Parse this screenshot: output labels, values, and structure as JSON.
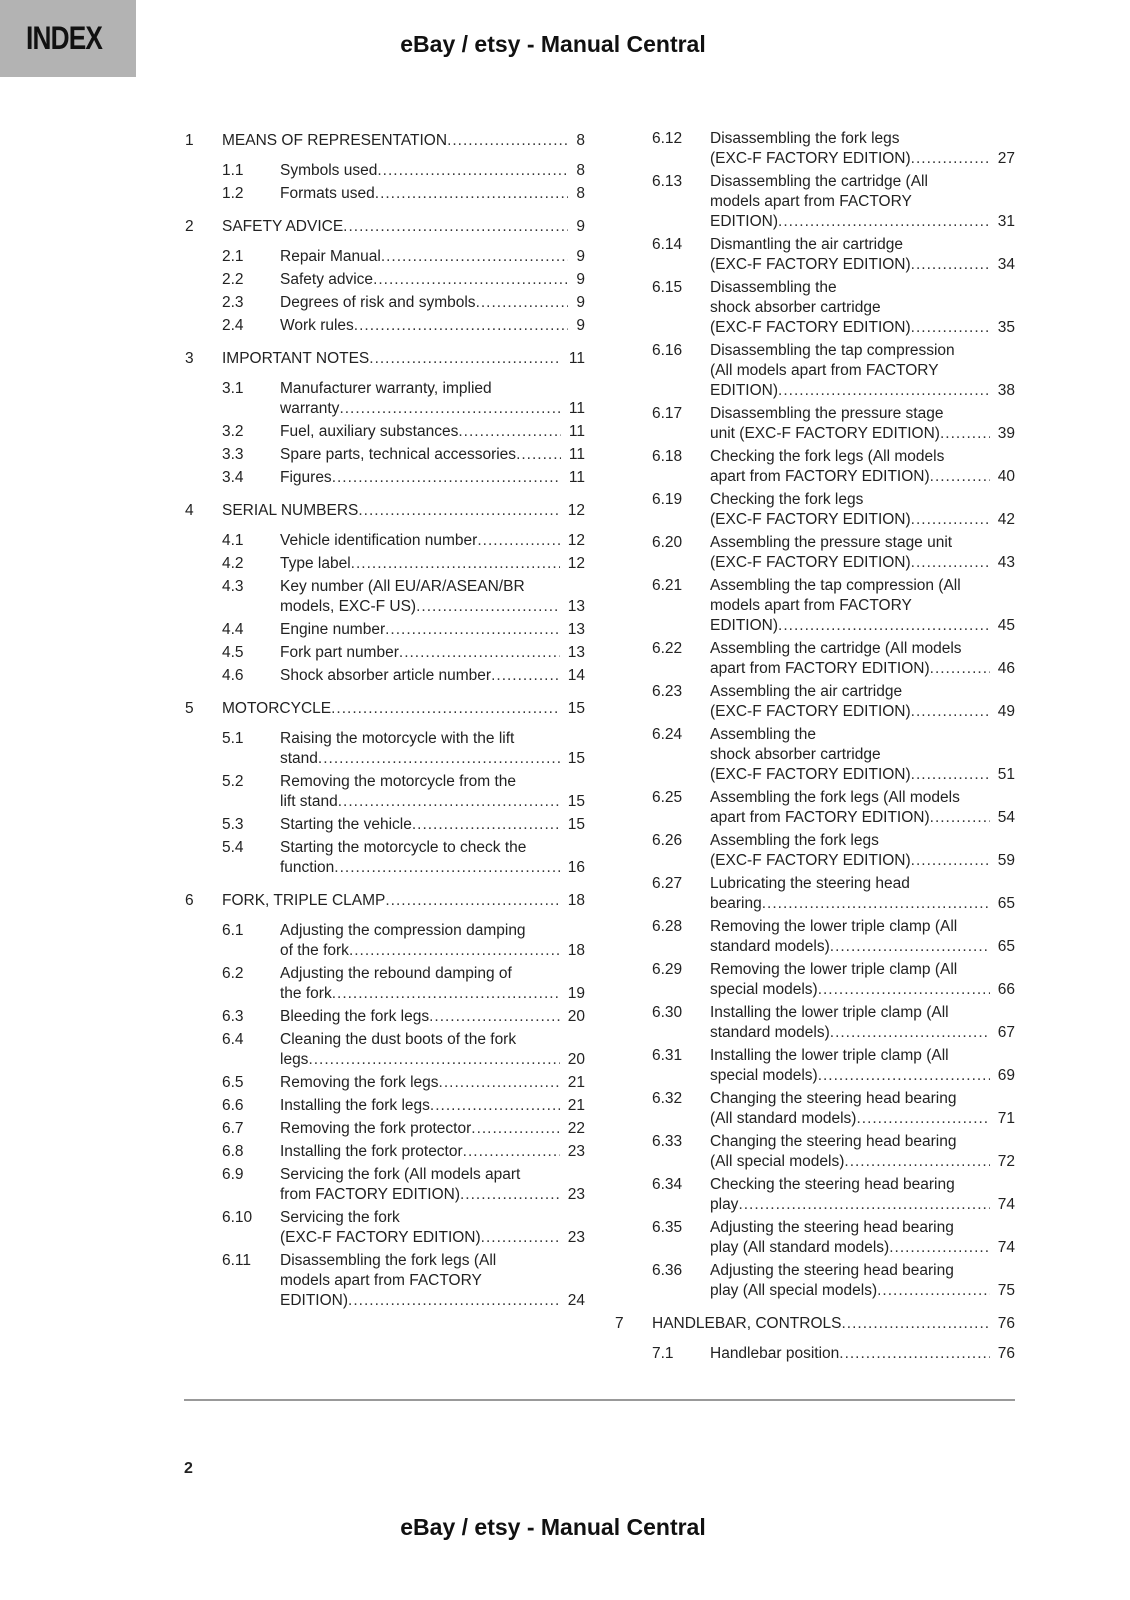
{
  "header": {
    "index_label": "INDEX",
    "title": "eBay / etsy - Manual Central"
  },
  "footer": {
    "page_number": "2",
    "title": "eBay / etsy - Manual Central"
  },
  "toc": {
    "left": [
      {
        "num": "1",
        "level": "chapter",
        "lines": [
          "MEANS OF REPRESENTATION"
        ],
        "page": "8"
      },
      {
        "num": "1.1",
        "level": "sub",
        "lines": [
          "Symbols used"
        ],
        "page": "8"
      },
      {
        "num": "1.2",
        "level": "sub",
        "lines": [
          "Formats used"
        ],
        "page": "8"
      },
      {
        "num": "2",
        "level": "chapter",
        "lines": [
          "SAFETY ADVICE"
        ],
        "page": "9"
      },
      {
        "num": "2.1",
        "level": "sub",
        "lines": [
          "Repair Manual"
        ],
        "page": "9"
      },
      {
        "num": "2.2",
        "level": "sub",
        "lines": [
          "Safety advice"
        ],
        "page": "9"
      },
      {
        "num": "2.3",
        "level": "sub",
        "lines": [
          "Degrees of risk and symbols"
        ],
        "page": "9"
      },
      {
        "num": "2.4",
        "level": "sub",
        "lines": [
          "Work rules"
        ],
        "page": "9"
      },
      {
        "num": "3",
        "level": "chapter",
        "lines": [
          "IMPORTANT NOTES"
        ],
        "page": "11"
      },
      {
        "num": "3.1",
        "level": "sub",
        "lines": [
          "Manufacturer warranty, implied",
          "warranty"
        ],
        "page": "11"
      },
      {
        "num": "3.2",
        "level": "sub",
        "lines": [
          "Fuel, auxiliary substances"
        ],
        "page": "11"
      },
      {
        "num": "3.3",
        "level": "sub",
        "lines": [
          "Spare parts, technical accessories"
        ],
        "page": "11"
      },
      {
        "num": "3.4",
        "level": "sub",
        "lines": [
          "Figures"
        ],
        "page": "11"
      },
      {
        "num": "4",
        "level": "chapter",
        "lines": [
          "SERIAL NUMBERS"
        ],
        "page": "12"
      },
      {
        "num": "4.1",
        "level": "sub",
        "lines": [
          "Vehicle identification number"
        ],
        "page": "12"
      },
      {
        "num": "4.2",
        "level": "sub",
        "lines": [
          "Type label"
        ],
        "page": "12"
      },
      {
        "num": "4.3",
        "level": "sub",
        "lines": [
          "Key number (All EU/AR/ASEAN/BR",
          "models, EXC-F US)"
        ],
        "page": "13"
      },
      {
        "num": "4.4",
        "level": "sub",
        "lines": [
          "Engine number"
        ],
        "page": "13"
      },
      {
        "num": "4.5",
        "level": "sub",
        "lines": [
          "Fork part number"
        ],
        "page": "13"
      },
      {
        "num": "4.6",
        "level": "sub",
        "lines": [
          "Shock absorber article number"
        ],
        "page": "14"
      },
      {
        "num": "5",
        "level": "chapter",
        "lines": [
          "MOTORCYCLE"
        ],
        "page": "15"
      },
      {
        "num": "5.1",
        "level": "sub",
        "lines": [
          "Raising the motorcycle with the lift",
          "stand"
        ],
        "page": "15"
      },
      {
        "num": "5.2",
        "level": "sub",
        "lines": [
          "Removing the motorcycle from the",
          "lift stand"
        ],
        "page": "15"
      },
      {
        "num": "5.3",
        "level": "sub",
        "lines": [
          "Starting the vehicle"
        ],
        "page": "15"
      },
      {
        "num": "5.4",
        "level": "sub",
        "lines": [
          "Starting the motorcycle to check the",
          "function"
        ],
        "page": "16"
      },
      {
        "num": "6",
        "level": "chapter",
        "lines": [
          "FORK, TRIPLE CLAMP"
        ],
        "page": "18"
      },
      {
        "num": "6.1",
        "level": "sub",
        "lines": [
          "Adjusting the compression damping",
          "of the fork"
        ],
        "page": "18"
      },
      {
        "num": "6.2",
        "level": "sub",
        "lines": [
          "Adjusting the rebound damping of",
          "the fork"
        ],
        "page": "19"
      },
      {
        "num": "6.3",
        "level": "sub",
        "lines": [
          "Bleeding the fork legs"
        ],
        "page": "20"
      },
      {
        "num": "6.4",
        "level": "sub",
        "lines": [
          "Cleaning the dust boots of the fork",
          "legs"
        ],
        "page": "20"
      },
      {
        "num": "6.5",
        "level": "sub",
        "lines": [
          "Removing the fork legs"
        ],
        "page": "21"
      },
      {
        "num": "6.6",
        "level": "sub",
        "lines": [
          "Installing the fork legs"
        ],
        "page": "21"
      },
      {
        "num": "6.7",
        "level": "sub",
        "lines": [
          "Removing the fork protector"
        ],
        "page": "22"
      },
      {
        "num": "6.8",
        "level": "sub",
        "lines": [
          "Installing the fork protector"
        ],
        "page": "23"
      },
      {
        "num": "6.9",
        "level": "sub",
        "lines": [
          "Servicing the fork (All models apart",
          "from FACTORY EDITION)"
        ],
        "page": "23"
      },
      {
        "num": "6.10",
        "level": "sub",
        "lines": [
          "Servicing the fork",
          "(EXC-F FACTORY EDITION)"
        ],
        "page": "23"
      },
      {
        "num": "6.11",
        "level": "sub",
        "lines": [
          "Disassembling the fork legs (All",
          "models apart from FACTORY",
          "EDITION)"
        ],
        "page": "24"
      }
    ],
    "right": [
      {
        "num": "6.12",
        "level": "sub",
        "lines": [
          "Disassembling the fork legs",
          "(EXC-F FACTORY EDITION)"
        ],
        "page": "27"
      },
      {
        "num": "6.13",
        "level": "sub",
        "lines": [
          "Disassembling the cartridge (All",
          "models apart from FACTORY",
          "EDITION)"
        ],
        "page": "31"
      },
      {
        "num": "6.14",
        "level": "sub",
        "lines": [
          "Dismantling the air cartridge",
          "(EXC-F FACTORY EDITION)"
        ],
        "page": "34"
      },
      {
        "num": "6.15",
        "level": "sub",
        "lines": [
          "Disassembling the",
          "shock absorber cartridge",
          "(EXC-F FACTORY EDITION)"
        ],
        "page": "35"
      },
      {
        "num": "6.16",
        "level": "sub",
        "lines": [
          "Disassembling the tap compression",
          "(All models apart from FACTORY",
          "EDITION)"
        ],
        "page": "38"
      },
      {
        "num": "6.17",
        "level": "sub",
        "lines": [
          "Disassembling the pressure stage",
          "unit (EXC-F FACTORY EDITION)"
        ],
        "page": "39"
      },
      {
        "num": "6.18",
        "level": "sub",
        "lines": [
          "Checking the fork legs (All models",
          "apart from FACTORY EDITION)"
        ],
        "page": "40"
      },
      {
        "num": "6.19",
        "level": "sub",
        "lines": [
          "Checking the fork legs",
          "(EXC-F FACTORY EDITION)"
        ],
        "page": "42"
      },
      {
        "num": "6.20",
        "level": "sub",
        "lines": [
          "Assembling the pressure stage unit",
          "(EXC-F FACTORY EDITION)"
        ],
        "page": "43"
      },
      {
        "num": "6.21",
        "level": "sub",
        "lines": [
          "Assembling the tap compression (All",
          "models apart from FACTORY",
          "EDITION)"
        ],
        "page": "45"
      },
      {
        "num": "6.22",
        "level": "sub",
        "lines": [
          "Assembling the cartridge (All models",
          "apart from FACTORY EDITION)"
        ],
        "page": "46"
      },
      {
        "num": "6.23",
        "level": "sub",
        "lines": [
          "Assembling the air cartridge",
          "(EXC-F FACTORY EDITION)"
        ],
        "page": "49"
      },
      {
        "num": "6.24",
        "level": "sub",
        "lines": [
          "Assembling the",
          "shock absorber cartridge",
          "(EXC-F FACTORY EDITION)"
        ],
        "page": "51"
      },
      {
        "num": "6.25",
        "level": "sub",
        "lines": [
          "Assembling the fork legs (All models",
          "apart from FACTORY EDITION)"
        ],
        "page": "54"
      },
      {
        "num": "6.26",
        "level": "sub",
        "lines": [
          "Assembling the fork legs",
          "(EXC-F FACTORY EDITION)"
        ],
        "page": "59"
      },
      {
        "num": "6.27",
        "level": "sub",
        "lines": [
          "Lubricating the steering head",
          "bearing"
        ],
        "page": "65"
      },
      {
        "num": "6.28",
        "level": "sub",
        "lines": [
          "Removing the lower triple clamp (All",
          "standard models)"
        ],
        "page": "65"
      },
      {
        "num": "6.29",
        "level": "sub",
        "lines": [
          "Removing the lower triple clamp (All",
          "special models)"
        ],
        "page": "66"
      },
      {
        "num": "6.30",
        "level": "sub",
        "lines": [
          "Installing the lower triple clamp (All",
          "standard models)"
        ],
        "page": "67"
      },
      {
        "num": "6.31",
        "level": "sub",
        "lines": [
          "Installing the lower triple clamp (All",
          "special models)"
        ],
        "page": "69"
      },
      {
        "num": "6.32",
        "level": "sub",
        "lines": [
          "Changing the steering head bearing",
          "(All standard models)"
        ],
        "page": "71"
      },
      {
        "num": "6.33",
        "level": "sub",
        "lines": [
          "Changing the steering head bearing",
          "(All special models)"
        ],
        "page": "72"
      },
      {
        "num": "6.34",
        "level": "sub",
        "lines": [
          "Checking the steering head bearing",
          "play"
        ],
        "page": "74"
      },
      {
        "num": "6.35",
        "level": "sub",
        "lines": [
          "Adjusting the steering head bearing",
          "play (All standard models)"
        ],
        "page": "74"
      },
      {
        "num": "6.36",
        "level": "sub",
        "lines": [
          "Adjusting the steering head bearing",
          "play (All special models)"
        ],
        "page": "75"
      },
      {
        "num": "7",
        "level": "chapter",
        "lines": [
          "HANDLEBAR, CONTROLS"
        ],
        "page": "76"
      },
      {
        "num": "7.1",
        "level": "sub",
        "lines": [
          "Handlebar position"
        ],
        "page": "76"
      }
    ]
  }
}
